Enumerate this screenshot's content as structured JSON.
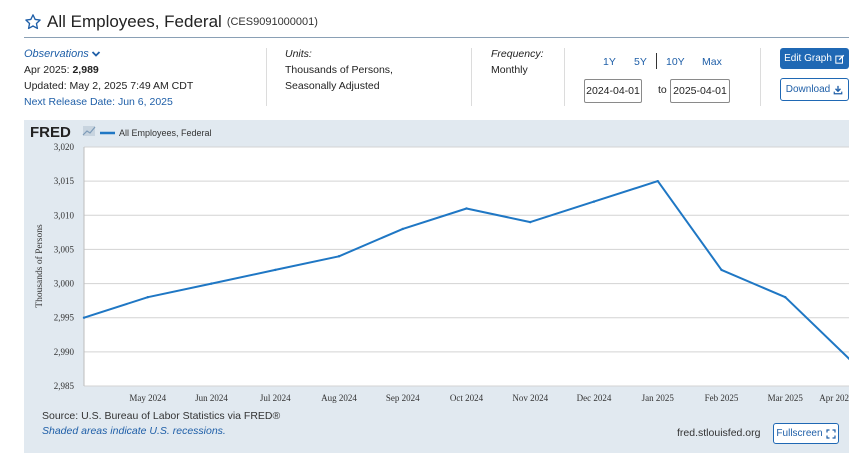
{
  "header": {
    "title": "All Employees, Federal",
    "series_code": "(CES9091000001)"
  },
  "observations": {
    "link_label": "Observations",
    "date_label": "Apr 2025:",
    "value": "2,989",
    "updated": "Updated: May 2, 2025 7:49 AM CDT",
    "next_release": "Next Release Date: Jun 6, 2025"
  },
  "units": {
    "label": "Units:",
    "line1": "Thousands of Persons,",
    "line2": "Seasonally Adjusted"
  },
  "frequency": {
    "label": "Frequency:",
    "value": "Monthly"
  },
  "range": {
    "buttons": [
      "1Y",
      "5Y",
      "10Y",
      "Max"
    ],
    "start": "2024-04-01",
    "to_label": "to",
    "end": "2025-04-01"
  },
  "actions": {
    "edit_graph": "Edit Graph",
    "download": "Download",
    "fullscreen": "Fullscreen"
  },
  "colors": {
    "accent": "#1f68b4",
    "series": "#1f77c4",
    "chart_bg": "#e1e9f0"
  },
  "icons": [
    "star-icon",
    "chevron-down-icon",
    "edit-icon",
    "download-icon",
    "fullscreen-icon",
    "fred-logo-icon"
  ],
  "chart_data": {
    "type": "line",
    "brand": "FRED",
    "legend_position": "top-left",
    "ylabel": "Thousands of Persons",
    "xlabel": "",
    "ylim": [
      2985,
      3020
    ],
    "yticks": [
      2985,
      2990,
      2995,
      3000,
      3005,
      3010,
      3015,
      3020
    ],
    "ytick_labels": [
      "2,985",
      "2,990",
      "2,995",
      "3,000",
      "3,005",
      "3,010",
      "3,015",
      "3,020"
    ],
    "grid": true,
    "x": [
      "2024-04-01",
      "2024-05-01",
      "2024-06-01",
      "2024-07-01",
      "2024-08-01",
      "2024-09-01",
      "2024-10-01",
      "2024-11-01",
      "2024-12-01",
      "2025-01-01",
      "2025-02-01",
      "2025-03-01",
      "2025-04-01"
    ],
    "x_tick_labels": [
      "May 2024",
      "Jun 2024",
      "Jul 2024",
      "Aug 2024",
      "Sep 2024",
      "Oct 2024",
      "Nov 2024",
      "Dec 2024",
      "Jan 2025",
      "Feb 2025",
      "Mar 2025",
      "Apr 202"
    ],
    "series": [
      {
        "name": "All Employees, Federal",
        "values": [
          2995,
          2998,
          3000,
          3002,
          3004,
          3008,
          3011,
          3009,
          3012,
          3015,
          3002,
          2998,
          2989
        ]
      }
    ]
  },
  "footer": {
    "source": "Source: U.S. Bureau of Labor Statistics via FRED®",
    "shaded_note": "Shaded areas indicate U.S. recessions.",
    "site": "fred.stlouisfed.org"
  }
}
